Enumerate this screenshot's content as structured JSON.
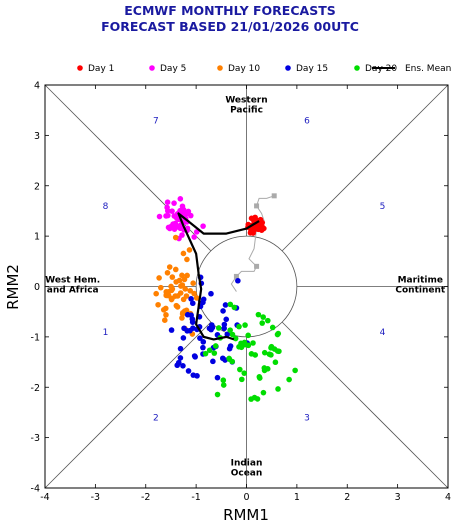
{
  "chart_data": {
    "type": "scatter",
    "title": "ECMWF MONTHLY FORECASTS",
    "subtitle": "FORECAST  BASED 21/01/2026 00UTC",
    "xlabel": "RMM1",
    "ylabel": "RMM2",
    "xlim": [
      -4,
      4
    ],
    "ylim": [
      -4,
      4
    ],
    "xticks": [
      "-4",
      "-3",
      "-2",
      "-1",
      "0",
      "1",
      "2",
      "3",
      "4"
    ],
    "yticks": [
      "-4",
      "-3",
      "-2",
      "-1",
      "0",
      "1",
      "2",
      "3",
      "4"
    ],
    "grid": false,
    "legend_position": "top",
    "unit_circle_radius": 1,
    "phases": [
      {
        "label": "1",
        "x": -2.8,
        "y": -0.9
      },
      {
        "label": "2",
        "x": -1.8,
        "y": -2.6
      },
      {
        "label": "3",
        "x": 1.2,
        "y": -2.6
      },
      {
        "label": "4",
        "x": 2.7,
        "y": -0.9
      },
      {
        "label": "5",
        "x": 2.7,
        "y": 1.6
      },
      {
        "label": "6",
        "x": 1.2,
        "y": 3.3
      },
      {
        "label": "7",
        "x": -1.8,
        "y": 3.3
      },
      {
        "label": "8",
        "x": -2.8,
        "y": 1.6
      }
    ],
    "regions": [
      {
        "lines": [
          "Western",
          "Pacific"
        ],
        "x": 0.0,
        "y": 3.65
      },
      {
        "lines": [
          "Maritime",
          "Continent"
        ],
        "x": 3.45,
        "y": 0.08
      },
      {
        "lines": [
          "Indian",
          "Ocean"
        ],
        "x": 0.0,
        "y": -3.55
      },
      {
        "lines": [
          "West Hem.",
          "and Africa"
        ],
        "x": -3.45,
        "y": 0.08
      }
    ],
    "series": [
      {
        "name": "Day 1",
        "color": "#ff0000",
        "center": [
          0.2,
          1.2
        ],
        "spread": [
          0.12,
          0.1
        ],
        "count": 40
      },
      {
        "name": "Day 5",
        "color": "#ff00ff",
        "center": [
          -1.35,
          1.35
        ],
        "spread": [
          0.25,
          0.22
        ],
        "count": 55
      },
      {
        "name": "Day 10",
        "color": "#ff8000",
        "center": [
          -1.35,
          -0.1
        ],
        "spread": [
          0.3,
          0.55
        ],
        "count": 55
      },
      {
        "name": "Day 15",
        "color": "#0000e0",
        "center": [
          -0.85,
          -1.0
        ],
        "spread": [
          0.6,
          0.65
        ],
        "count": 60
      },
      {
        "name": "Day 20",
        "color": "#00dd00",
        "center": [
          0.0,
          -1.3
        ],
        "spread": [
          0.65,
          0.7
        ],
        "count": 60
      }
    ],
    "ensemble_mean": {
      "name": "Ens. Mean",
      "color": "#000000",
      "points": [
        [
          0.25,
          1.3
        ],
        [
          0.0,
          1.15
        ],
        [
          -0.4,
          1.05
        ],
        [
          -0.85,
          1.05
        ],
        [
          -1.1,
          1.25
        ],
        [
          -1.35,
          1.45
        ],
        [
          -1.25,
          1.2
        ],
        [
          -1.0,
          0.65
        ],
        [
          -0.95,
          0.25
        ],
        [
          -0.9,
          -0.05
        ],
        [
          -0.95,
          -0.4
        ],
        [
          -1.0,
          -0.75
        ],
        [
          -0.85,
          -1.0
        ],
        [
          -0.65,
          -1.05
        ],
        [
          -0.4,
          -1.0
        ],
        [
          -0.25,
          -1.05
        ]
      ]
    },
    "observed_track": {
      "color": "#aaaaaa",
      "points": [
        [
          0.55,
          1.8
        ],
        [
          0.4,
          1.75
        ],
        [
          0.25,
          1.75
        ],
        [
          0.2,
          1.6
        ],
        [
          0.3,
          1.45
        ],
        [
          0.35,
          1.3
        ],
        [
          0.2,
          1.15
        ],
        [
          0.15,
          0.75
        ],
        [
          0.05,
          0.55
        ],
        [
          0.2,
          0.4
        ],
        [
          0.15,
          0.3
        ],
        [
          -0.1,
          0.3
        ],
        [
          -0.2,
          0.2
        ],
        [
          -0.3,
          0.05
        ],
        [
          -0.2,
          -0.1
        ]
      ]
    }
  }
}
